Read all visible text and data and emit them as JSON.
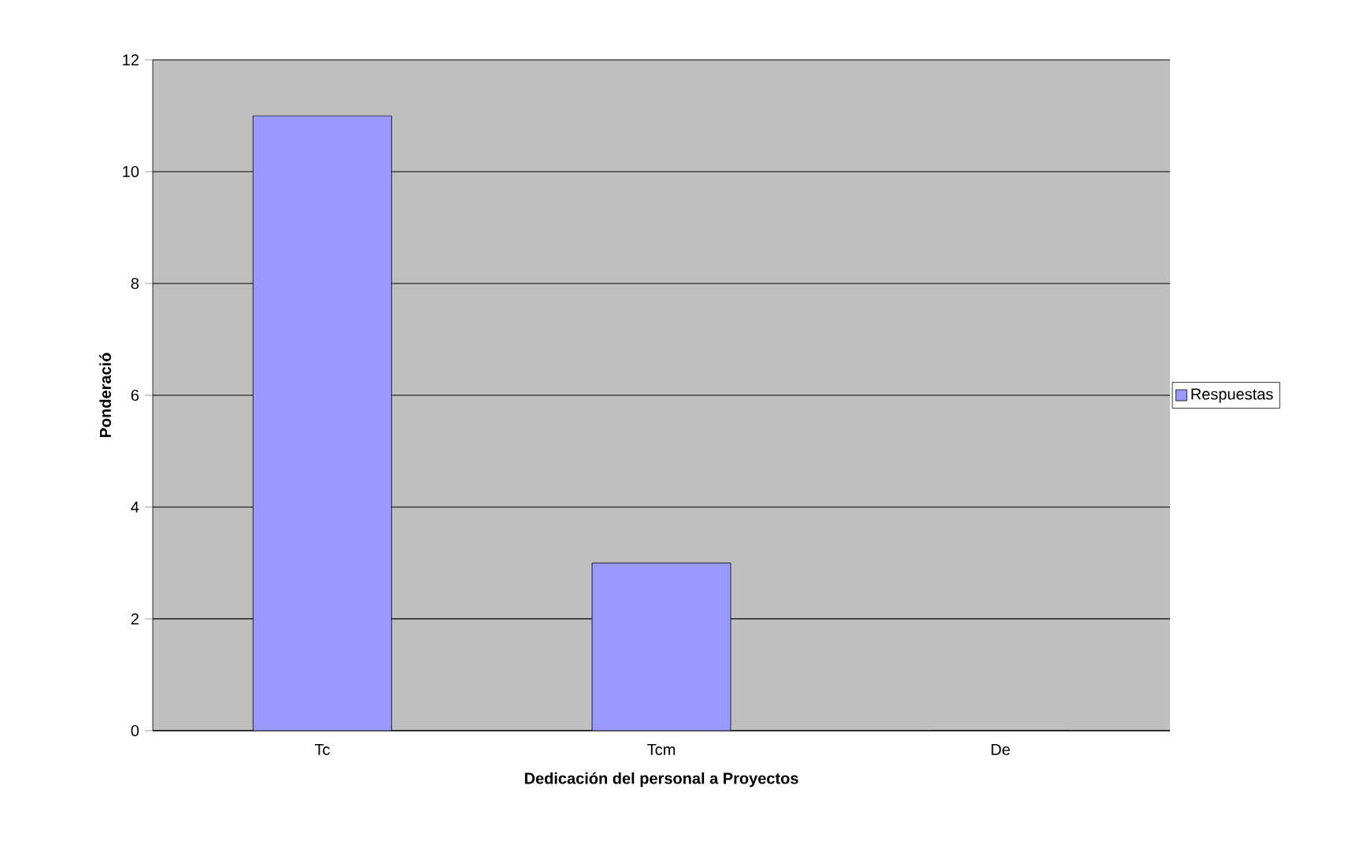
{
  "chart_data": {
    "type": "bar",
    "xlabel": "Dedicación del personal a Proyectos",
    "ylabel": "Ponderació",
    "categories": [
      "Tc",
      "Tcm",
      "De"
    ],
    "series": [
      {
        "name": "Respuestas",
        "color": "#9999ff",
        "values": [
          11,
          3,
          0
        ]
      }
    ],
    "ylim": [
      0,
      12
    ],
    "yticks": [
      0,
      2,
      4,
      6,
      8,
      10,
      12
    ],
    "grid": "y",
    "legend": "right"
  }
}
